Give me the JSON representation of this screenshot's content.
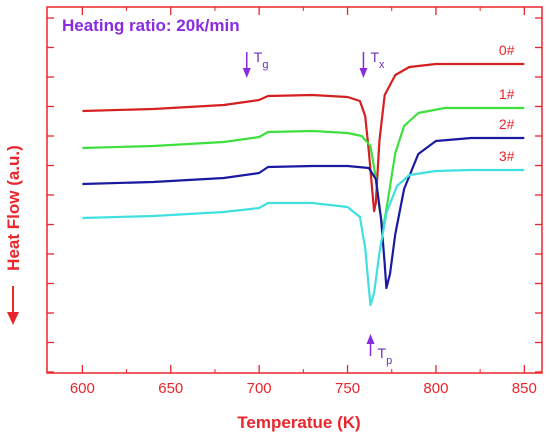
{
  "chart_data": {
    "type": "line",
    "heading": "Heating ratio: 20k/min",
    "xlabel": "Temperatue (K)",
    "ylabel": "Heat Flow  (a.u.)",
    "xlim": [
      580,
      860
    ],
    "xticks": [
      600,
      650,
      700,
      750,
      800,
      850
    ],
    "grid": false,
    "series": [
      {
        "name": "0#",
        "color": "#d42020",
        "points": [
          [
            600,
            0.0
          ],
          [
            640,
            0.2
          ],
          [
            680,
            0.6
          ],
          [
            700,
            1.1
          ],
          [
            705,
            1.5
          ],
          [
            730,
            1.6
          ],
          [
            750,
            1.4
          ],
          [
            757,
            1.0
          ],
          [
            760,
            -0.5
          ],
          [
            762,
            -4.0
          ],
          [
            764,
            -8.0
          ],
          [
            765,
            -10.0
          ],
          [
            766,
            -9.2
          ],
          [
            768,
            -3.0
          ],
          [
            771,
            1.6
          ],
          [
            777,
            3.6
          ],
          [
            785,
            4.4
          ],
          [
            800,
            4.7
          ],
          [
            820,
            4.7
          ],
          [
            850,
            4.7
          ]
        ]
      },
      {
        "name": "1#",
        "color": "#3ee03e",
        "points": [
          [
            600,
            0.0
          ],
          [
            640,
            0.2
          ],
          [
            680,
            0.6
          ],
          [
            700,
            1.1
          ],
          [
            705,
            1.6
          ],
          [
            730,
            1.7
          ],
          [
            750,
            1.5
          ],
          [
            758,
            1.2
          ],
          [
            763,
            0.2
          ],
          [
            766,
            -3.0
          ],
          [
            768,
            -6.0
          ],
          [
            770,
            -8.2
          ],
          [
            773,
            -5.0
          ],
          [
            777,
            -0.5
          ],
          [
            782,
            2.2
          ],
          [
            790,
            3.5
          ],
          [
            805,
            4.0
          ],
          [
            825,
            4.0
          ],
          [
            850,
            4.0
          ]
        ]
      },
      {
        "name": "2#",
        "color": "#1a1aa0",
        "points": [
          [
            600,
            0.0
          ],
          [
            640,
            0.2
          ],
          [
            680,
            0.6
          ],
          [
            700,
            1.1
          ],
          [
            705,
            1.7
          ],
          [
            730,
            1.8
          ],
          [
            750,
            1.8
          ],
          [
            762,
            1.6
          ],
          [
            766,
            0.5
          ],
          [
            769,
            -3.5
          ],
          [
            771,
            -8.0
          ],
          [
            772,
            -10.4
          ],
          [
            774,
            -9.0
          ],
          [
            777,
            -5.0
          ],
          [
            782,
            -0.5
          ],
          [
            790,
            3.0
          ],
          [
            800,
            4.3
          ],
          [
            820,
            4.6
          ],
          [
            850,
            4.6
          ]
        ]
      },
      {
        "name": "3#",
        "color": "#40e0e0",
        "points": [
          [
            600,
            0.0
          ],
          [
            640,
            0.2
          ],
          [
            680,
            0.6
          ],
          [
            700,
            1.0
          ],
          [
            705,
            1.5
          ],
          [
            730,
            1.5
          ],
          [
            750,
            1.1
          ],
          [
            757,
            0.1
          ],
          [
            760,
            -3.0
          ],
          [
            762,
            -7.0
          ],
          [
            763,
            -8.7
          ],
          [
            765,
            -7.5
          ],
          [
            768,
            -3.5
          ],
          [
            772,
            0.5
          ],
          [
            778,
            3.2
          ],
          [
            785,
            4.3
          ],
          [
            800,
            4.7
          ],
          [
            820,
            4.8
          ],
          [
            850,
            4.8
          ]
        ]
      }
    ],
    "series_label_x": 840,
    "annotations": [
      {
        "label": "T",
        "sub": "g",
        "x": 693,
        "direction": "down",
        "anchor": "0#"
      },
      {
        "label": "T",
        "sub": "x",
        "x": 759,
        "direction": "down",
        "anchor": "0#"
      },
      {
        "label": "T",
        "sub": "p",
        "x": 763,
        "direction": "up",
        "anchor": "3#"
      }
    ]
  }
}
